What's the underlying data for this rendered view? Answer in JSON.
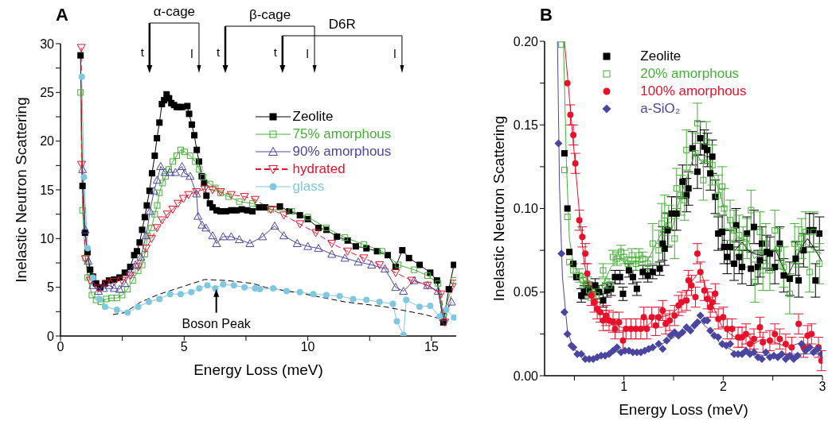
{
  "chart_data": [
    {
      "type": "line",
      "title": "A",
      "xlabel": "Energy Loss (meV)",
      "ylabel": "Inelastic Neutron Scattering",
      "xlim": [
        0,
        16
      ],
      "ylim": [
        0,
        30
      ],
      "xticks": [
        0,
        {
          "value": 2.5,
          "label": null
        },
        5,
        {
          "value": 7.5,
          "label": null
        },
        10,
        {
          "value": 12.5,
          "label": null
        },
        15
      ],
      "yticks": [
        0,
        {
          "value": 2.5,
          "label": null
        },
        5,
        {
          "value": 7.5,
          "label": null
        },
        10,
        {
          "value": 12.5,
          "label": null
        },
        15,
        {
          "value": 17.5,
          "label": null
        },
        20,
        {
          "value": 22.5,
          "label": null
        },
        25,
        {
          "value": 27.5,
          "label": null
        },
        30
      ],
      "legend": "right",
      "annotations": [
        "α-cage",
        "t",
        "l",
        "β-cage",
        "t",
        "l",
        "D6R",
        "t",
        "l",
        {
          "text": "Boson Peak",
          "x": 6.3,
          "y": 5.0
        }
      ],
      "series": [
        {
          "name": "Zeolite",
          "color": "#000000",
          "marker": "square",
          "line_style": "solid",
          "x": [
            0.81,
            0.89,
            0.99,
            1.09,
            1.2,
            1.31,
            1.44,
            1.61,
            1.8,
            1.96,
            2.17,
            2.39,
            2.6,
            2.82,
            2.98,
            3.09,
            3.2,
            3.3,
            3.41,
            3.49,
            3.6,
            3.7,
            3.81,
            3.9,
            4.0,
            4.1,
            4.19,
            4.29,
            4.39,
            4.48,
            4.59,
            4.7,
            4.8,
            4.91,
            5.13,
            5.2,
            5.31,
            5.41,
            5.51,
            5.6,
            5.71,
            5.81,
            5.9,
            6.04,
            6.15,
            6.31,
            6.47,
            6.69,
            6.9,
            7.12,
            7.33,
            7.55,
            7.76,
            8.03,
            8.28,
            8.87,
            9.25,
            9.68,
            10,
            10.43,
            10.75,
            11.18,
            11.61,
            11.94,
            12.37,
            12.8,
            13.23,
            13.55,
            13.82,
            14.09,
            14.52,
            14.95,
            15.22,
            15.48,
            15.7,
            15.91
          ],
          "values": [
            28.8,
            15.4,
            10.6,
            8.6,
            6.8,
            6.1,
            5.4,
            5.0,
            5.4,
            5.7,
            5.8,
            6.0,
            6.5,
            7.1,
            8.3,
            8.7,
            9.6,
            10.9,
            12.2,
            13.4,
            14.9,
            16.7,
            18.5,
            20.3,
            21.9,
            23.8,
            24.2,
            24.8,
            24.4,
            23.9,
            23.7,
            23.5,
            23.5,
            23.5,
            23.6,
            22.8,
            21.7,
            20.6,
            19.1,
            17.9,
            16.4,
            15.7,
            14.4,
            13.6,
            13.2,
            12.9,
            12.8,
            12.8,
            12.9,
            12.9,
            13.0,
            12.9,
            12.8,
            13.2,
            13.2,
            13.3,
            12.8,
            12.4,
            12.0,
            11.1,
            10.9,
            10.2,
            9.8,
            9.2,
            9.0,
            8.7,
            8.3,
            7.1,
            8.8,
            8.0,
            7.3,
            6.5,
            5.7,
            1.4,
            4.8,
            7.3
          ]
        },
        {
          "name": "75% amorphous",
          "color": "#44b036",
          "marker": "square-open",
          "line_style": "solid",
          "x": [
            0.81,
            0.89,
            1.01,
            1.1,
            1.27,
            1.44,
            1.63,
            1.85,
            2.06,
            2.28,
            2.49,
            2.71,
            2.92,
            3.14,
            3.3,
            3.41,
            3.52,
            3.68,
            3.81,
            3.91,
            4.0,
            4.13,
            4.25,
            4.38,
            4.54,
            4.7,
            4.86,
            5.02,
            5.24,
            5.45,
            5.61,
            5.77,
            6.04,
            6.26,
            6.47,
            6.8,
            7.23,
            7.76,
            8.5,
            9.35,
            10,
            10.75,
            11.5,
            12.26,
            13.0,
            13.66,
            14.3,
            14.84,
            15.27,
            15.48,
            15.91
          ],
          "values": [
            25.0,
            12.9,
            8.0,
            6.0,
            4.2,
            3.7,
            3.5,
            3.8,
            3.9,
            3.9,
            4.2,
            4.8,
            5.7,
            6.7,
            7.3,
            8.4,
            10.3,
            11.1,
            12.5,
            13.4,
            14.7,
            15.7,
            16.4,
            17.1,
            17.9,
            18.5,
            19.1,
            18.9,
            18.5,
            17.9,
            17.1,
            16.3,
            15.6,
            15.2,
            14.7,
            14.3,
            13.8,
            13.6,
            13.0,
            12.8,
            12.2,
            11.1,
            10.1,
            9.4,
            8.7,
            7.3,
            6.8,
            6.2,
            5.4,
            2.2,
            5.7
          ]
        },
        {
          "name": "90% amorphous",
          "color": "#4a46a0",
          "marker": "triangle-open",
          "line_style": "solid",
          "x": [
            0.89,
            1.0,
            1.12,
            1.31,
            1.53,
            1.74,
            1.96,
            2.17,
            2.39,
            2.6,
            2.82,
            3.03,
            3.25,
            3.46,
            3.62,
            3.78,
            3.91,
            4.05,
            4.22,
            4.43,
            4.65,
            4.91,
            5.02,
            5.24,
            5.5,
            5.56,
            5.72,
            5.88,
            6.15,
            6.31,
            6.58,
            6.9,
            7.23,
            7.66,
            8.17,
            8.66,
            9.03,
            9.57,
            10,
            10.43,
            10.97,
            11.5,
            12.04,
            12.58,
            13.12,
            13.55,
            13.87,
            14.3,
            14.84,
            15.27,
            15.48,
            15.81
          ],
          "values": [
            17.1,
            10.9,
            7.7,
            5.2,
            4.6,
            4.9,
            5.2,
            4.9,
            4.8,
            5.4,
            6.5,
            7.3,
            8.1,
            10.3,
            12.8,
            14.9,
            16.0,
            17.4,
            16.8,
            16.8,
            16.8,
            17.4,
            16.7,
            16.4,
            14.6,
            12.3,
            11.4,
            11.1,
            10.3,
            9.5,
            10.2,
            10.2,
            9.9,
            9.5,
            10.2,
            11.3,
            10.3,
            9.5,
            9.2,
            9.0,
            8.4,
            8.0,
            7.6,
            7.3,
            6.9,
            5.0,
            4.6,
            5.7,
            5.2,
            4.6,
            1.9,
            3.5
          ]
        },
        {
          "name": "hydrated",
          "color": "#e8102a",
          "marker": "triangle-down-open",
          "line_style": "dashed",
          "x": [
            0.84,
            0.85,
            1.01,
            1.2,
            1.53,
            1.85,
            2.17,
            2.49,
            2.82,
            3.14,
            3.46,
            3.68,
            3.9,
            4.11,
            4.32,
            4.54,
            4.75,
            4.97,
            5.18,
            5.5,
            5.83,
            6.15,
            6.47,
            6.9,
            7.44,
            7.87,
            8.5,
            9.03,
            9.68,
            10.32,
            10.97,
            11.61,
            12.26,
            12.9,
            13.55,
            14.2,
            14.84,
            15.38,
            15.54,
            15.91
          ],
          "values": [
            29.6,
            17.6,
            7.9,
            5.7,
            4.9,
            5.4,
            5.6,
            5.7,
            6.2,
            7.1,
            9.0,
            10.0,
            11.1,
            11.9,
            12.5,
            13.0,
            13.6,
            14.1,
            14.5,
            14.8,
            15.1,
            15.0,
            14.8,
            14.5,
            14.3,
            14.0,
            13.0,
            12.4,
            11.5,
            10.6,
            9.5,
            8.7,
            8.0,
            7.3,
            6.5,
            5.7,
            5.2,
            4.3,
            1.4,
            5.4
          ]
        },
        {
          "name": "glass",
          "color": "#7ec8e0",
          "marker": "circle",
          "line_style": "solid",
          "x": [
            0.86,
            0.95,
            1.1,
            1.31,
            1.58,
            1.8,
            2.28,
            2.71,
            3.14,
            3.57,
            4.0,
            4.43,
            4.86,
            5.29,
            5.61,
            5.94,
            6.26,
            6.58,
            7.01,
            7.44,
            7.87,
            8.06,
            8.6,
            9.14,
            9.68,
            10.22,
            10.75,
            11.29,
            11.83,
            12.37,
            12.9,
            13.44,
            13.6,
            13.87,
            13.98,
            14.52,
            14.95,
            15.33,
            15.6,
            15.91
          ],
          "values": [
            26.6,
            16.3,
            9.0,
            6.0,
            3.8,
            3.0,
            2.7,
            2.4,
            3.0,
            3.5,
            3.8,
            4.3,
            4.3,
            4.5,
            4.9,
            5.2,
            4.9,
            5.3,
            5.2,
            5.0,
            4.9,
            4.8,
            4.9,
            4.6,
            4.5,
            4.3,
            4.2,
            4.1,
            3.8,
            3.7,
            3.5,
            3.3,
            1.5,
            0.1,
            3.7,
            3.0,
            3.1,
            2.0,
            2.7,
            1.9
          ]
        },
        {
          "type": "line",
          "color": "#000000",
          "marker": "none",
          "line_style": "dashed",
          "x": [
            2.12,
            2.6,
            3.25,
            4.0,
            4.86,
            5.83,
            6.69,
            7.76,
            8.28,
            9.89,
            11.5,
            13.12,
            14.73,
            15.59
          ],
          "values": [
            2.2,
            2.4,
            3.5,
            4.3,
            5.0,
            5.8,
            5.7,
            5.4,
            5.0,
            4.3,
            3.5,
            3.0,
            2.2,
            1.6
          ]
        }
      ]
    },
    {
      "type": "scatter",
      "title": "B",
      "xlabel": "Energy Loss (meV)",
      "ylabel": "Inelastic Neutron Scattering",
      "xlim": [
        0.2,
        3
      ],
      "ylim": [
        0,
        0.2
      ],
      "xticks": [
        {
          "value": 0.5,
          "label": null
        },
        1,
        {
          "value": 1.5,
          "label": null
        },
        2,
        {
          "value": 2.5,
          "label": null
        },
        3
      ],
      "yticks": [
        {
          "value": 0,
          "label": "0.00"
        },
        {
          "value": 0.025,
          "label": null
        },
        {
          "value": 0.05,
          "label": "0.05"
        },
        {
          "value": 0.075,
          "label": null
        },
        {
          "value": 0.1,
          "label": "0.10"
        },
        {
          "value": 0.125,
          "label": null
        },
        {
          "value": 0.15,
          "label": "0.15"
        },
        {
          "value": 0.175,
          "label": null
        },
        {
          "value": 0.2,
          "label": "0.20"
        }
      ],
      "legend": "top left",
      "series": [
        {
          "name": "Zeolite",
          "color": "#000000",
          "marker": "square",
          "x": [
            0.4,
            0.43,
            0.45,
            0.49,
            0.52,
            0.57,
            0.6,
            0.64,
            0.71,
            0.75,
            0.79,
            0.83,
            0.87,
            0.91,
            0.96,
            0.99,
            1.05,
            1.09,
            1.13,
            1.19,
            1.24,
            1.29,
            1.36,
            1.39,
            1.41,
            1.44,
            1.48,
            1.53,
            1.59,
            1.63,
            1.65,
            1.69,
            1.74,
            1.77,
            1.81,
            1.84,
            1.87,
            1.89,
            1.92,
            1.95,
            1.99,
            2.01,
            2.04,
            2.07,
            2.11,
            2.13,
            2.16,
            2.19,
            2.24,
            2.28,
            2.31,
            2.35,
            2.37,
            2.39,
            2.44,
            2.47,
            2.52,
            2.57,
            2.61,
            2.67,
            2.73,
            2.76,
            2.81,
            2.87,
            2.91,
            2.93,
            2.97
          ],
          "values": [
            0.133,
            0.1,
            0.074,
            0.067,
            0.059,
            0.048,
            0.05,
            0.052,
            0.054,
            0.05,
            0.045,
            0.051,
            0.052,
            0.059,
            0.059,
            0.049,
            0.063,
            0.059,
            0.052,
            0.062,
            0.06,
            0.062,
            0.064,
            0.079,
            0.076,
            0.087,
            0.097,
            0.097,
            0.116,
            0.108,
            0.112,
            0.136,
            0.122,
            0.142,
            0.137,
            0.135,
            0.121,
            0.131,
            0.107,
            0.085,
            0.086,
            0.077,
            0.071,
            0.077,
            0.067,
            0.09,
            0.071,
            0.065,
            0.085,
            0.064,
            0.089,
            0.065,
            0.069,
            0.079,
            0.074,
            0.073,
            0.065,
            0.079,
            0.06,
            0.058,
            0.07,
            0.057,
            0.075,
            0.087,
            0.087,
            0.057,
            0.085
          ],
          "errors": [
            null,
            null,
            null,
            null,
            null,
            0.004,
            0.004,
            0.004,
            0.004,
            0.004,
            0.004,
            0.004,
            0.004,
            0.004,
            0.004,
            0.004,
            0.004,
            0.004,
            0.004,
            0.004,
            0.004,
            0.004,
            0.004,
            0.01,
            0.01,
            0.01,
            0.01,
            0.01,
            0.01,
            0.01,
            0.01,
            0.01,
            0.01,
            0.01,
            0.01,
            0.01,
            0.01,
            0.01,
            0.01,
            0.01,
            0.01,
            0.01,
            0.01,
            0.01,
            0.01,
            0.01,
            0.01,
            0.01,
            0.01,
            0.01,
            0.01,
            0.01,
            0.01,
            0.01,
            0.01,
            0.01,
            0.01,
            0.01,
            0.01,
            0.01,
            0.01,
            0.01,
            0.01,
            0.01,
            0.01,
            0.01,
            0.01
          ]
        },
        {
          "name": "20% amorphous",
          "color": "#44b036",
          "marker": "square-open",
          "x": [
            0.37,
            0.4,
            0.43,
            0.45,
            0.49,
            0.55,
            0.59,
            0.63,
            0.65,
            0.68,
            0.72,
            0.79,
            0.81,
            0.85,
            0.89,
            0.93,
            0.97,
            1.0,
            1.04,
            1.08,
            1.12,
            1.15,
            1.19,
            1.24,
            1.29,
            1.35,
            1.38,
            1.41,
            1.45,
            1.51,
            1.53,
            1.57,
            1.61,
            1.63,
            1.72,
            1.74,
            1.8,
            1.83,
            1.89,
            1.95,
            1.99,
            2.01,
            2.07,
            2.11,
            2.16,
            2.2,
            2.24,
            2.28,
            2.32,
            2.37,
            2.4,
            2.43,
            2.47,
            2.52,
            2.56,
            2.61,
            2.67,
            2.72,
            2.76,
            2.79,
            2.83,
            2.87,
            2.91,
            2.97
          ],
          "values": [
            0.198,
            0.123,
            0.095,
            0.068,
            0.063,
            0.06,
            0.057,
            0.055,
            0.051,
            0.049,
            0.048,
            0.063,
            0.054,
            0.054,
            0.071,
            0.07,
            0.074,
            0.071,
            0.067,
            0.072,
            0.067,
            0.072,
            0.07,
            0.067,
            0.079,
            0.075,
            0.091,
            0.096,
            0.09,
            0.082,
            0.112,
            0.108,
            0.105,
            0.135,
            0.133,
            0.151,
            0.117,
            0.14,
            0.126,
            0.108,
            0.113,
            0.1,
            0.093,
            0.087,
            0.084,
            0.077,
            0.082,
            0.099,
            0.056,
            0.086,
            0.063,
            0.079,
            0.063,
            0.087,
            0.076,
            0.065,
            0.049,
            0.079,
            0.077,
            0.082,
            0.086,
            0.062,
            0.086,
            0.067
          ],
          "errors": [
            null,
            null,
            null,
            null,
            0.004,
            0.004,
            0.004,
            0.004,
            0.004,
            0.004,
            0.004,
            0.004,
            0.004,
            0.004,
            0.004,
            0.004,
            0.004,
            0.004,
            0.004,
            0.004,
            0.004,
            0.004,
            0.004,
            0.004,
            0.012,
            0.012,
            0.012,
            0.012,
            0.012,
            0.012,
            0.012,
            0.012,
            0.012,
            0.012,
            0.012,
            0.012,
            0.012,
            0.012,
            0.012,
            0.012,
            0.012,
            0.012,
            0.012,
            0.012,
            0.012,
            0.012,
            0.012,
            0.012,
            0.012,
            0.012,
            0.012,
            0.012,
            0.012,
            0.012,
            0.012,
            0.012,
            0.012,
            0.012,
            0.012,
            0.012,
            0.012,
            0.012,
            0.012,
            0.012
          ]
        },
        {
          "name": "100% amorphous",
          "color": "#e8102a",
          "marker": "circle",
          "x": [
            0.43,
            0.46,
            0.49,
            0.51,
            0.55,
            0.58,
            0.61,
            0.63,
            0.67,
            0.7,
            0.73,
            0.76,
            0.79,
            0.82,
            0.85,
            0.89,
            0.91,
            0.95,
            0.99,
            1.02,
            1.07,
            1.12,
            1.17,
            1.2,
            1.23,
            1.28,
            1.32,
            1.35,
            1.39,
            1.42,
            1.46,
            1.51,
            1.55,
            1.58,
            1.63,
            1.65,
            1.68,
            1.72,
            1.74,
            1.77,
            1.81,
            1.84,
            1.87,
            1.89,
            1.92,
            1.95,
            2.0,
            2.04,
            2.09,
            2.15,
            2.19,
            2.23,
            2.27,
            2.31,
            2.37,
            2.4,
            2.47,
            2.52,
            2.57,
            2.63,
            2.69,
            2.76,
            2.81,
            2.85,
            2.89,
            2.96,
            2.99
          ],
          "values": [
            0.175,
            0.156,
            0.144,
            0.127,
            0.093,
            0.083,
            0.073,
            0.061,
            0.048,
            0.044,
            0.04,
            0.038,
            0.033,
            0.036,
            0.033,
            0.032,
            0.028,
            0.032,
            0.021,
            0.028,
            0.028,
            0.028,
            0.028,
            0.035,
            0.028,
            0.035,
            0.03,
            0.035,
            0.039,
            0.031,
            0.033,
            0.036,
            0.042,
            0.044,
            0.045,
            0.057,
            0.054,
            0.047,
            0.073,
            0.062,
            0.051,
            0.046,
            0.041,
            0.044,
            0.049,
            0.034,
            0.035,
            0.028,
            0.028,
            0.023,
            0.023,
            0.025,
            0.019,
            0.022,
            0.029,
            0.02,
            0.021,
            0.025,
            0.022,
            0.019,
            0.017,
            0.031,
            0.017,
            0.024,
            0.025,
            0.017,
            0.009
          ],
          "errors": [
            null,
            0.006,
            0.006,
            0.006,
            0.006,
            0.006,
            0.006,
            0.006,
            0.006,
            0.006,
            0.006,
            0.006,
            0.006,
            0.006,
            0.006,
            0.006,
            0.006,
            0.006,
            0.006,
            0.006,
            0.006,
            0.006,
            0.006,
            0.006,
            0.006,
            0.006,
            0.006,
            0.006,
            0.006,
            0.006,
            0.006,
            0.006,
            0.006,
            0.006,
            0.006,
            0.006,
            0.006,
            0.006,
            0.006,
            0.006,
            0.006,
            0.006,
            0.006,
            0.006,
            0.006,
            0.006,
            0.006,
            0.006,
            0.006,
            0.006,
            0.006,
            0.006,
            0.006,
            0.006,
            0.006,
            0.006,
            0.006,
            0.006,
            0.006,
            0.006,
            0.006,
            0.006,
            0.006,
            0.006,
            0.006,
            0.006,
            0.006
          ]
        },
        {
          "name": "a-SiO₂",
          "color": "#4a46a0",
          "marker": "diamond",
          "x": [
            0.34,
            0.37,
            0.4,
            0.43,
            0.47,
            0.49,
            0.53,
            0.57,
            0.61,
            0.65,
            0.69,
            0.73,
            0.77,
            0.81,
            0.85,
            0.89,
            0.93,
            0.97,
            1.01,
            1.05,
            1.09,
            1.13,
            1.17,
            1.21,
            1.25,
            1.29,
            1.35,
            1.39,
            1.43,
            1.47,
            1.51,
            1.55,
            1.59,
            1.63,
            1.67,
            1.71,
            1.74,
            1.77,
            1.81,
            1.84,
            1.87,
            1.91,
            1.95,
            1.99,
            2.03,
            2.07,
            2.11,
            2.15,
            2.19,
            2.23,
            2.27,
            2.31,
            2.35,
            2.39,
            2.43,
            2.47,
            2.51,
            2.55,
            2.59,
            2.63,
            2.67,
            2.71,
            2.75,
            2.79,
            2.83,
            2.87,
            2.91,
            2.95,
            2.99
          ],
          "values": [
            0.139,
            0.073,
            0.038,
            0.025,
            0.018,
            0.017,
            0.013,
            0.013,
            0.01,
            0.01,
            0.01,
            0.011,
            0.012,
            0.012,
            0.013,
            0.015,
            0.017,
            0.014,
            0.015,
            0.015,
            0.014,
            0.014,
            0.014,
            0.015,
            0.016,
            0.017,
            0.019,
            0.016,
            0.021,
            0.024,
            0.026,
            0.024,
            0.026,
            0.029,
            0.027,
            0.03,
            0.032,
            0.036,
            0.033,
            0.033,
            0.027,
            0.024,
            0.023,
            0.019,
            0.018,
            0.019,
            0.013,
            0.013,
            0.013,
            0.015,
            0.013,
            0.014,
            0.011,
            0.01,
            0.014,
            0.011,
            0.012,
            0.011,
            0.013,
            0.01,
            0.012,
            0.01,
            0.012,
            0.019,
            0.015,
            0.017,
            0.014,
            0.016,
            0.013
          ]
        },
        {
          "type": "line",
          "color": "#000000",
          "marker": "none",
          "x": [
            2.12,
            2.19,
            2.25,
            2.31,
            2.39,
            2.47,
            2.53,
            2.6,
            2.65,
            2.72,
            2.8,
            2.85,
            2.92,
            2.99
          ],
          "values": [
            0.075,
            0.08,
            0.075,
            0.073,
            0.072,
            0.073,
            0.075,
            0.065,
            0.06,
            0.068,
            0.078,
            0.082,
            0.076,
            0.069
          ]
        },
        {
          "type": "line",
          "color": "#44b036",
          "marker": "none",
          "x": [
            0.39,
            0.42,
            0.45,
            0.49,
            0.57,
            0.68,
            0.79,
            0.87,
            0.95,
            1.03,
            1.13,
            1.24,
            1.35,
            1.43,
            1.48,
            1.56,
            1.64,
            1.72,
            1.79,
            1.85,
            1.93,
            2.01,
            2.09,
            2.17,
            2.25,
            2.31,
            2.39,
            2.47,
            2.53,
            2.59,
            2.65,
            2.73,
            2.8,
            2.87,
            2.95,
            2.99
          ],
          "values": [
            0.2,
            0.127,
            0.082,
            0.067,
            0.059,
            0.051,
            0.055,
            0.065,
            0.07,
            0.067,
            0.067,
            0.069,
            0.082,
            0.091,
            0.087,
            0.105,
            0.12,
            0.134,
            0.127,
            0.127,
            0.116,
            0.1,
            0.087,
            0.082,
            0.081,
            0.07,
            0.074,
            0.073,
            0.077,
            0.068,
            0.059,
            0.07,
            0.081,
            0.077,
            0.074,
            0.073
          ]
        },
        {
          "type": "line",
          "color": "#e8102a",
          "marker": "none",
          "x": [
            0.4,
            0.44,
            0.49,
            0.55,
            0.6,
            0.67,
            0.76,
            0.87,
            0.97,
            1.11,
            1.24,
            1.32,
            1.45,
            1.56,
            1.64,
            1.69,
            1.77,
            1.83,
            1.91,
            1.99,
            2.07,
            2.17,
            2.25,
            2.31,
            2.39,
            2.52,
            2.65,
            2.79,
            2.89,
            2.99
          ],
          "values": [
            0.2,
            0.173,
            0.139,
            0.098,
            0.067,
            0.048,
            0.038,
            0.032,
            0.029,
            0.028,
            0.03,
            0.035,
            0.036,
            0.041,
            0.051,
            0.057,
            0.063,
            0.052,
            0.04,
            0.029,
            0.025,
            0.021,
            0.024,
            0.019,
            0.022,
            0.02,
            0.017,
            0.02,
            0.017,
            0.016
          ]
        },
        {
          "type": "line",
          "color": "#4a46a0",
          "marker": "none",
          "x": [
            0.33,
            0.35,
            0.38,
            0.43,
            0.49,
            0.65,
            0.84,
            0.97,
            1.24,
            1.45,
            1.64,
            1.76,
            1.85,
            1.96,
            2.12,
            2.44,
            2.76,
            2.99
          ],
          "values": [
            0.2,
            0.114,
            0.059,
            0.027,
            0.016,
            0.01,
            0.013,
            0.015,
            0.015,
            0.021,
            0.028,
            0.033,
            0.028,
            0.02,
            0.014,
            0.012,
            0.013,
            0.013
          ]
        }
      ]
    }
  ]
}
